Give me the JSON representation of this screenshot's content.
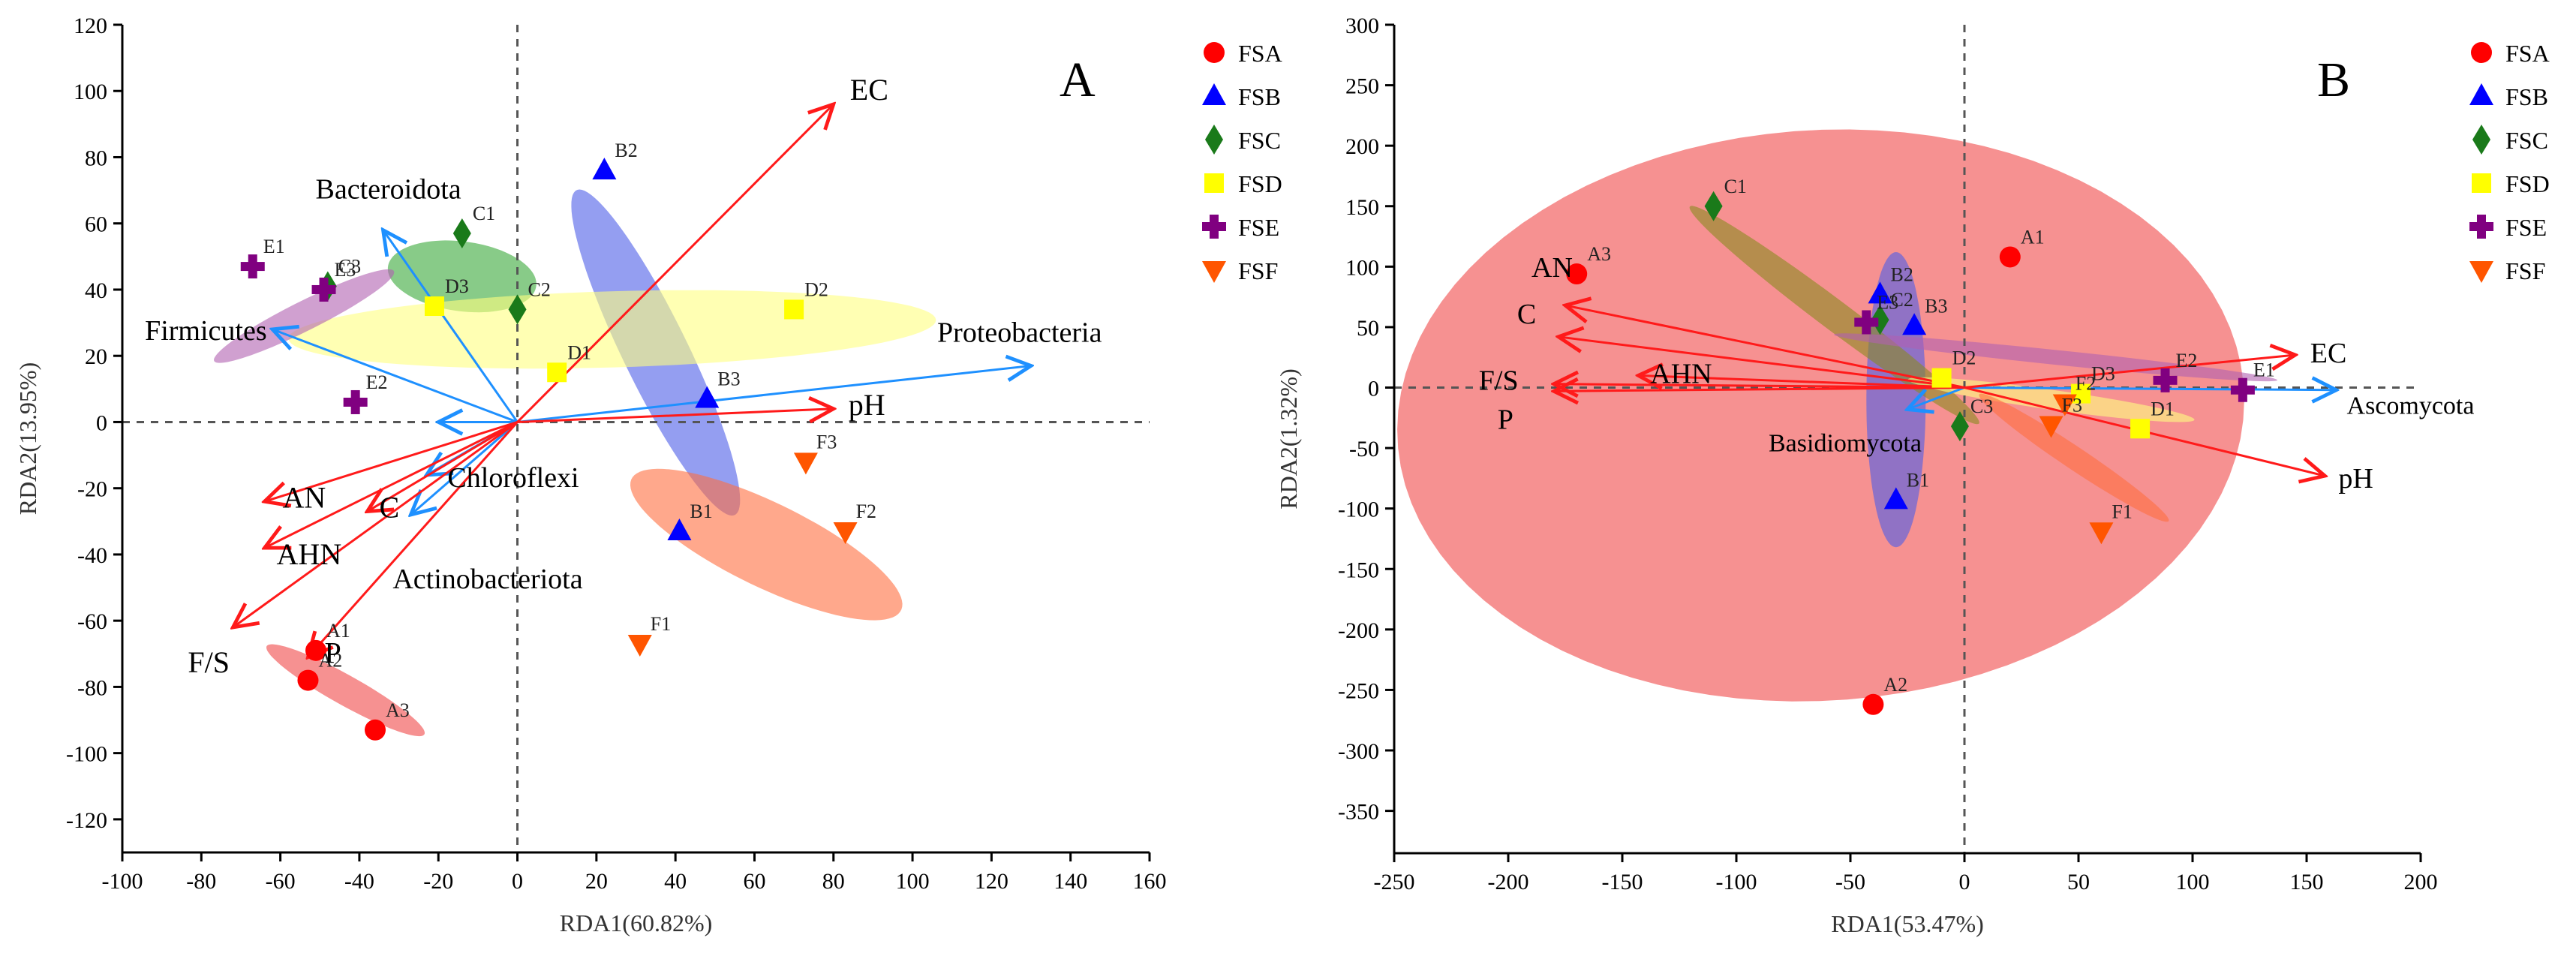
{
  "chart_data": [
    {
      "type": "scatter",
      "subtype": "RDA biplot",
      "panel_label": "A",
      "xlabel": "RDA1(60.82%)",
      "ylabel": "RDA2(13.95%)",
      "xlim": [
        -100,
        160
      ],
      "ylim": [
        -130,
        120
      ],
      "xticks": [
        -100,
        -80,
        -60,
        -40,
        -20,
        0,
        20,
        40,
        60,
        80,
        100,
        120,
        140,
        160
      ],
      "yticks": [
        -120,
        -100,
        -80,
        -60,
        -40,
        -20,
        0,
        20,
        40,
        60,
        80,
        100,
        120
      ],
      "grid": false,
      "legend_position": "right",
      "series": [
        {
          "name": "FSA",
          "marker": "circle",
          "color": "#ff0000",
          "points": [
            {
              "label": "A1",
              "x": -51,
              "y": -69
            },
            {
              "label": "A2",
              "x": -53,
              "y": -78
            },
            {
              "label": "A3",
              "x": -36,
              "y": -93
            }
          ]
        },
        {
          "name": "FSB",
          "marker": "triangle-up",
          "color": "#0000ff",
          "points": [
            {
              "label": "B1",
              "x": 41,
              "y": -33
            },
            {
              "label": "B2",
              "x": 22,
              "y": 76
            },
            {
              "label": "B3",
              "x": 48,
              "y": 7
            }
          ]
        },
        {
          "name": "FSC",
          "marker": "diamond",
          "color": "#1a7a1a",
          "points": [
            {
              "label": "C1",
              "x": -14,
              "y": 57
            },
            {
              "label": "C2",
              "x": 0,
              "y": 34
            },
            {
              "label": "C3",
              "x": -48,
              "y": 41
            }
          ]
        },
        {
          "name": "FSD",
          "marker": "square",
          "color": "#ffff00",
          "points": [
            {
              "label": "D1",
              "x": 10,
              "y": 15
            },
            {
              "label": "D2",
              "x": 70,
              "y": 34
            },
            {
              "label": "D3",
              "x": -21,
              "y": 35
            }
          ]
        },
        {
          "name": "FSE",
          "marker": "plus",
          "color": "#800080",
          "points": [
            {
              "label": "E1",
              "x": -67,
              "y": 47
            },
            {
              "label": "E2",
              "x": -41,
              "y": 6
            },
            {
              "label": "E3",
              "x": -49,
              "y": 40
            }
          ]
        },
        {
          "name": "FSF",
          "marker": "triangle-down",
          "color": "#ff5500",
          "points": [
            {
              "label": "F1",
              "x": 31,
              "y": -67
            },
            {
              "label": "F2",
              "x": 83,
              "y": -33
            },
            {
              "label": "F3",
              "x": 73,
              "y": -12
            }
          ]
        }
      ],
      "ellipses": [
        {
          "group": "FSA",
          "color": "#f04848",
          "cx": -43.5,
          "cy": -81,
          "rx": 24,
          "ry": 4.3,
          "angle": -34
        },
        {
          "group": "FSB",
          "color": "#4d5de8",
          "cx": 35,
          "cy": 21,
          "rx": 53,
          "ry": 8.5,
          "angle": -68
        },
        {
          "group": "FSC",
          "color": "#38a838",
          "cx": -14,
          "cy": 44,
          "rx": 19,
          "ry": 10.5,
          "angle": -10
        },
        {
          "group": "FSD",
          "color": "#ffff80",
          "cx": 24,
          "cy": 28,
          "rx": 82,
          "ry": 11.5,
          "angle": 2
        },
        {
          "group": "FSE",
          "color": "#b060b0",
          "cx": -54,
          "cy": 32,
          "rx": 26.5,
          "ry": 4.3,
          "angle": 31
        },
        {
          "group": "FSF",
          "color": "#ff6e40",
          "cx": 63,
          "cy": -37,
          "rx": 39.5,
          "ry": 12.2,
          "angle": -31
        }
      ],
      "env_arrows": [
        {
          "label": "EC",
          "x": 80,
          "y": 96
        },
        {
          "label": "pH",
          "x": 80,
          "y": 4
        },
        {
          "label": "AN",
          "x": -64,
          "y": -24
        },
        {
          "label": "AHN",
          "x": -64,
          "y": -38
        },
        {
          "label": "C",
          "x": -38,
          "y": -27
        },
        {
          "label": "F/S",
          "x": -72,
          "y": -62
        },
        {
          "label": "P",
          "x": -53,
          "y": -71
        }
      ],
      "taxa_arrows": [
        {
          "label": "Proteobacteria",
          "x": 130,
          "y": 17
        },
        {
          "label": "Bacteroidota",
          "x": -34,
          "y": 58
        },
        {
          "label": "Firmicutes",
          "x": -62,
          "y": 28
        },
        {
          "label": "Chloroflexi",
          "x": -23,
          "y": -16
        },
        {
          "label": "Actinobacteriota",
          "x": -27,
          "y": -28
        },
        {
          "label": "",
          "x": -20,
          "y": 0
        }
      ]
    },
    {
      "type": "scatter",
      "subtype": "RDA biplot",
      "panel_label": "B",
      "xlabel": "RDA1(53.47%)",
      "ylabel": "RDA2(1.32%)",
      "xlim": [
        -250,
        200
      ],
      "ylim": [
        -385,
        300
      ],
      "xticks": [
        -250,
        -200,
        -150,
        -100,
        -50,
        0,
        50,
        100,
        150,
        200
      ],
      "yticks": [
        -350,
        -300,
        -250,
        -200,
        -150,
        -100,
        -50,
        0,
        50,
        100,
        150,
        200,
        250,
        300
      ],
      "grid": false,
      "legend_position": "right",
      "series": [
        {
          "name": "FSA",
          "marker": "circle",
          "color": "#ff0000",
          "points": [
            {
              "label": "A1",
              "x": 20,
              "y": 108
            },
            {
              "label": "A2",
              "x": -40,
              "y": -262
            },
            {
              "label": "A3",
              "x": -170,
              "y": 94
            }
          ]
        },
        {
          "name": "FSB",
          "marker": "triangle-up",
          "color": "#0000ff",
          "points": [
            {
              "label": "B1",
              "x": -30,
              "y": -93
            },
            {
              "label": "B2",
              "x": -37,
              "y": 77
            },
            {
              "label": "B3",
              "x": -22,
              "y": 51
            }
          ]
        },
        {
          "name": "FSC",
          "marker": "diamond",
          "color": "#1a7a1a",
          "points": [
            {
              "label": "C1",
              "x": -110,
              "y": 150
            },
            {
              "label": "C2",
              "x": -37,
              "y": 56
            },
            {
              "label": "C3",
              "x": -2,
              "y": -32
            }
          ]
        },
        {
          "name": "FSD",
          "marker": "square",
          "color": "#ffff00",
          "points": [
            {
              "label": "D1",
              "x": 77,
              "y": -34
            },
            {
              "label": "D2",
              "x": -10,
              "y": 8
            },
            {
              "label": "D3",
              "x": 51,
              "y": -5
            }
          ]
        },
        {
          "name": "FSE",
          "marker": "plus",
          "color": "#800080",
          "points": [
            {
              "label": "E1",
              "x": 122,
              "y": -2
            },
            {
              "label": "E2",
              "x": 88,
              "y": 6
            },
            {
              "label": "E3",
              "x": -43,
              "y": 54
            }
          ]
        },
        {
          "name": "FSF",
          "marker": "triangle-down",
          "color": "#ff5500",
          "points": [
            {
              "label": "F1",
              "x": 60,
              "y": -119
            },
            {
              "label": "F2",
              "x": 44,
              "y": -13
            },
            {
              "label": "F3",
              "x": 38,
              "y": -31
            }
          ]
        }
      ],
      "ellipses": [
        {
          "group": "FSA",
          "color": "#f04848",
          "cx": -63,
          "cy": -23,
          "rx": 185,
          "ry": 237,
          "angle": -6
        },
        {
          "group": "FSB",
          "color": "#4d5de8",
          "cx": -30,
          "cy": -10,
          "rx": 13,
          "ry": 122,
          "angle": 0
        },
        {
          "group": "FSC",
          "color": "#8a8a20",
          "cx": -57,
          "cy": 60,
          "rx": 110,
          "ry": 9,
          "angle": -55
        },
        {
          "group": "FSD",
          "color": "#ffff80",
          "cx": 38,
          "cy": -10,
          "rx": 65,
          "ry": 8,
          "angle": -15
        },
        {
          "group": "FSE",
          "color": "#b060b0",
          "cx": 40,
          "cy": 25,
          "rx": 99,
          "ry": 6,
          "angle": -11
        },
        {
          "group": "FSF",
          "color": "#ff6e40",
          "cx": 48,
          "cy": -58,
          "rx": 67,
          "ry": 7,
          "angle": -52
        }
      ],
      "env_arrows": [
        {
          "label": "EC",
          "x": 145,
          "y": 27
        },
        {
          "label": "pH",
          "x": 158,
          "y": -73
        },
        {
          "label": "AN",
          "x": -175,
          "y": 68
        },
        {
          "label": "C",
          "x": -178,
          "y": 42
        },
        {
          "label": "AHN",
          "x": -143,
          "y": 10
        },
        {
          "label": "F/S",
          "x": -180,
          "y": 3
        },
        {
          "label": "P",
          "x": -180,
          "y": -3
        }
      ],
      "taxa_arrows": [
        {
          "label": "Ascomycota",
          "x": 163,
          "y": -2
        },
        {
          "label": "Basidiomycota",
          "x": -25,
          "y": -18
        }
      ]
    }
  ],
  "legend": [
    {
      "name": "FSA",
      "marker": "circle",
      "color": "#ff0000"
    },
    {
      "name": "FSB",
      "marker": "triangle-up",
      "color": "#0000ff"
    },
    {
      "name": "FSC",
      "marker": "diamond",
      "color": "#1a7a1a"
    },
    {
      "name": "FSD",
      "marker": "square",
      "color": "#ffff00"
    },
    {
      "name": "FSE",
      "marker": "plus",
      "color": "#800080"
    },
    {
      "name": "FSF",
      "marker": "triangle-down",
      "color": "#ff5500"
    }
  ],
  "colors": {
    "env_arrow": "#ff1a1a",
    "taxa_arrow": "#1e90ff"
  }
}
